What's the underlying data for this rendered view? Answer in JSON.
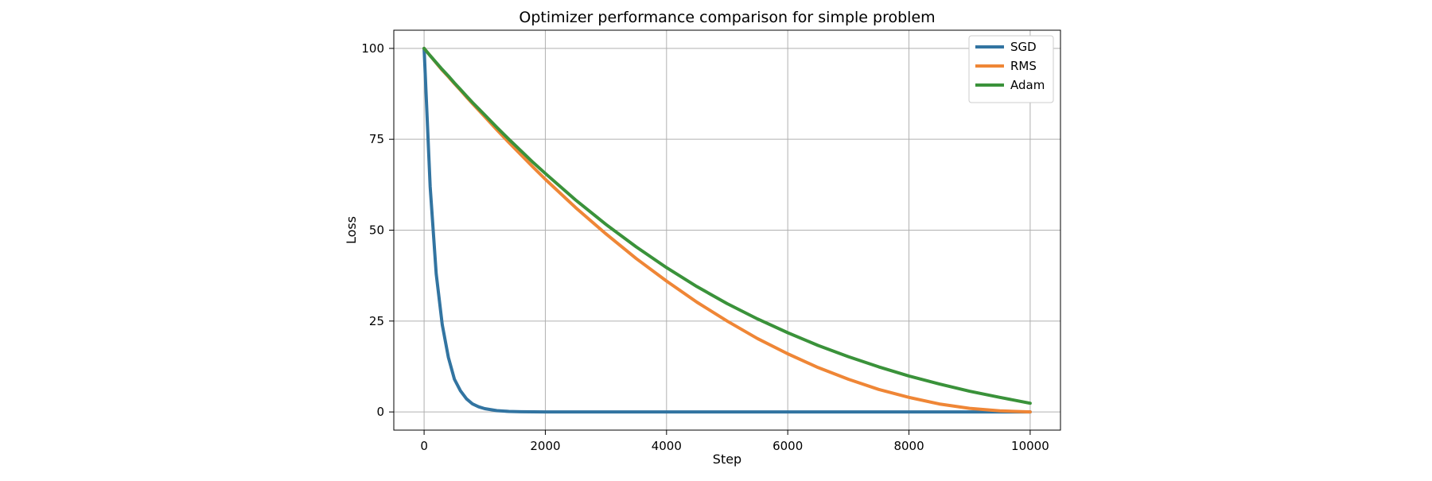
{
  "chart_data": {
    "type": "line",
    "title": "Optimizer performance comparison for simple problem",
    "xlabel": "Step",
    "ylabel": "Loss",
    "xlim": [
      -500,
      10500
    ],
    "ylim": [
      -5,
      105
    ],
    "xticks": [
      0,
      2000,
      4000,
      6000,
      8000,
      10000
    ],
    "yticks": [
      0,
      25,
      50,
      75,
      100
    ],
    "grid": true,
    "legend_position": "top-right",
    "x": [
      0,
      100,
      200,
      300,
      400,
      500,
      600,
      700,
      800,
      900,
      1000,
      1200,
      1400,
      1600,
      1800,
      2000,
      2500,
      3000,
      3500,
      4000,
      4500,
      5000,
      5500,
      6000,
      6500,
      7000,
      7500,
      8000,
      8500,
      9000,
      9500,
      10000
    ],
    "series": [
      {
        "name": "SGD",
        "color": "#3274a1",
        "values": [
          100,
          62,
          38,
          24,
          15,
          9,
          5.8,
          3.6,
          2.2,
          1.4,
          0.9,
          0.35,
          0.13,
          0.05,
          0.02,
          0,
          0,
          0,
          0,
          0,
          0,
          0,
          0,
          0,
          0,
          0,
          0,
          0,
          0,
          0,
          0,
          0
        ]
      },
      {
        "name": "RMS",
        "color": "#ef8636",
        "values": [
          100,
          98,
          96,
          94,
          92.2,
          90.3,
          88.5,
          86.6,
          84.8,
          83,
          81.2,
          77.6,
          74.1,
          70.7,
          67.3,
          64,
          56.2,
          49,
          42.2,
          36,
          30.2,
          25,
          20.2,
          16,
          12.2,
          9,
          6.2,
          4,
          2.2,
          1,
          0.3,
          0
        ]
      },
      {
        "name": "Adam",
        "color": "#3a923a",
        "values": [
          100,
          98,
          96.1,
          94.2,
          92.4,
          90.5,
          88.7,
          86.9,
          85.1,
          83.4,
          81.7,
          78.3,
          75,
          71.8,
          68.6,
          65.6,
          58.3,
          51.6,
          45.4,
          39.7,
          34.5,
          29.8,
          25.6,
          21.8,
          18.3,
          15.2,
          12.4,
          9.9,
          7.7,
          5.7,
          4,
          2.4
        ]
      }
    ]
  }
}
